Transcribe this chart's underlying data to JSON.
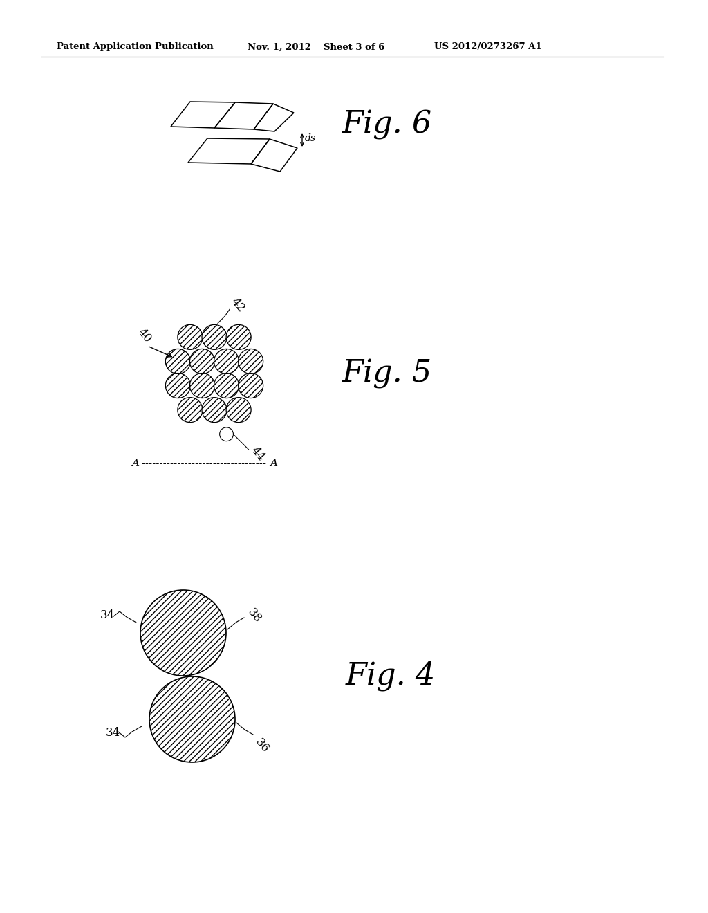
{
  "bg_color": "#ffffff",
  "header_text": "Patent Application Publication",
  "header_date": "Nov. 1, 2012",
  "header_sheet": "Sheet 3 of 6",
  "header_patent": "US 2012/0273267 A1",
  "fig6_label": "Fig. 6",
  "fig5_label": "Fig. 5",
  "fig4_label": "Fig. 4",
  "label_40": "40",
  "label_42": "42",
  "label_44": "44",
  "label_34a": "34",
  "label_34b": "34",
  "label_36": "36",
  "label_38": "38",
  "label_ds": "ds",
  "label_A": "A"
}
